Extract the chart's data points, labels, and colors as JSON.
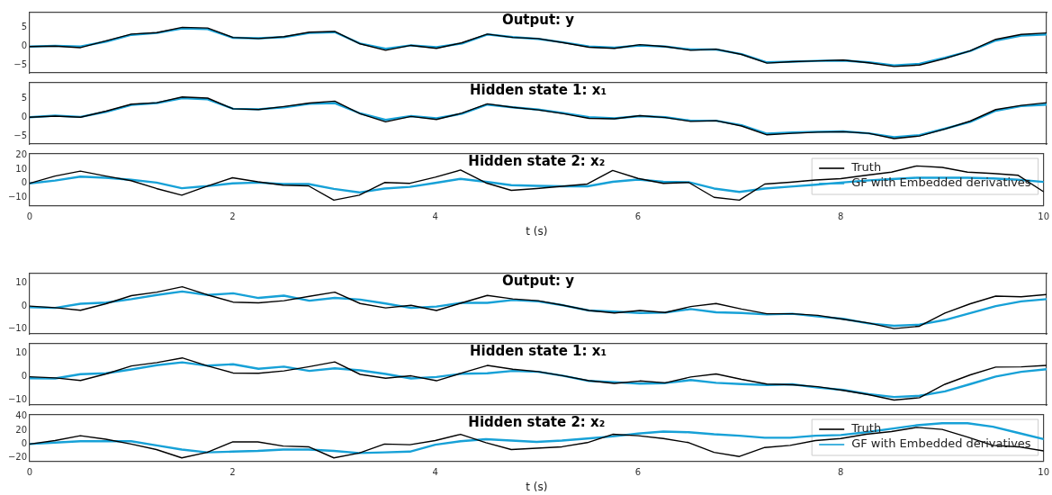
{
  "chart_data": [
    {
      "type": "line",
      "title": "Output: y",
      "x": [
        0,
        0.25,
        0.5,
        0.75,
        1,
        1.25,
        1.5,
        1.75,
        2,
        2.25,
        2.5,
        2.75,
        3,
        3.25,
        3.5,
        3.75,
        4,
        4.25,
        4.5,
        4.75,
        5,
        5.25,
        5.5,
        5.75,
        6,
        6.25,
        6.5,
        6.75,
        7,
        7.25,
        7.5,
        7.75,
        8,
        8.25,
        8.5,
        8.75,
        9,
        9.25,
        9.5,
        9.75,
        10
      ],
      "xlim": [
        0,
        10
      ],
      "xticks": [
        0,
        2,
        4,
        6,
        8,
        10
      ],
      "ylim": [
        -7,
        9
      ],
      "yticks": [
        -5,
        0,
        5
      ],
      "tick_labels": "y",
      "series": [
        {
          "color": "#000000",
          "values": [
            0,
            0.1,
            -0.3,
            1.5,
            3.3,
            3.7,
            5.1,
            4.9,
            2.4,
            2.1,
            2.6,
            3.8,
            4.0,
            0.7,
            -1,
            0.3,
            -0.5,
            1,
            3.3,
            2.4,
            2.1,
            1,
            -0.2,
            -0.5,
            0.5,
            0,
            -1,
            -0.7,
            -2.1,
            -4.4,
            -4,
            -3.8,
            -3.6,
            -4.3,
            -5.3,
            -4.9,
            -3.2,
            -1.1,
            1.9,
            3.2,
            3.6
          ]
        },
        {
          "color": "#17a1d7",
          "values": [
            0,
            0.2,
            0,
            1.3,
            3.1,
            3.6,
            4.8,
            4.6,
            2.3,
            2.2,
            2.5,
            3.6,
            3.8,
            0.8,
            -0.6,
            0.3,
            -0.2,
            0.8,
            3.2,
            2.5,
            2.0,
            1.1,
            0,
            -0.3,
            0.3,
            0,
            -0.8,
            -0.8,
            -2.0,
            -4.2,
            -4.0,
            -3.8,
            -3.7,
            -4.2,
            -5.0,
            -4.6,
            -3.0,
            -1.2,
            1.6,
            2.9,
            3.2
          ]
        }
      ]
    },
    {
      "type": "line",
      "title": "Hidden state 1: x₁",
      "x": [
        0,
        0.25,
        0.5,
        0.75,
        1,
        1.25,
        1.5,
        1.75,
        2,
        2.25,
        2.5,
        2.75,
        3,
        3.25,
        3.5,
        3.75,
        4,
        4.25,
        4.5,
        4.75,
        5,
        5.25,
        5.5,
        5.75,
        6,
        6.25,
        6.5,
        6.75,
        7,
        7.25,
        7.5,
        7.75,
        8,
        8.25,
        8.5,
        8.75,
        9,
        9.25,
        9.5,
        9.75,
        10
      ],
      "xlim": [
        0,
        10
      ],
      "xticks": [
        0,
        2,
        4,
        6,
        8,
        10
      ],
      "ylim": [
        -7,
        9
      ],
      "yticks": [
        -5,
        0,
        5
      ],
      "tick_labels": "y",
      "series": [
        {
          "color": "#000000",
          "values": [
            0,
            0.3,
            0,
            1.6,
            3.4,
            3.8,
            5.3,
            5.0,
            2.2,
            2.0,
            2.8,
            3.7,
            4.2,
            0.9,
            -1.2,
            0.2,
            -0.6,
            1.1,
            3.5,
            2.6,
            1.9,
            0.9,
            -0.3,
            -0.4,
            0.4,
            -0.1,
            -1.1,
            -0.9,
            -2.3,
            -4.6,
            -4.2,
            -3.9,
            -3.8,
            -4.2,
            -5.6,
            -4.9,
            -3.1,
            -1.0,
            2.0,
            3.1,
            3.8
          ]
        },
        {
          "color": "#17a1d7",
          "values": [
            0,
            0.4,
            0.1,
            1.4,
            3.2,
            3.7,
            5.0,
            4.7,
            2.2,
            2.1,
            2.6,
            3.5,
            3.7,
            1.0,
            -0.7,
            0.3,
            -0.3,
            0.9,
            3.3,
            2.6,
            2.0,
            1.1,
            0,
            -0.3,
            0.3,
            0,
            -0.9,
            -0.9,
            -2.1,
            -4.3,
            -4.0,
            -3.8,
            -3.7,
            -4.2,
            -5.2,
            -4.7,
            -3.0,
            -1.2,
            1.7,
            2.9,
            3.3
          ]
        }
      ]
    },
    {
      "type": "line",
      "title": "Hidden state 2: x₂",
      "xlabel": "t (s)",
      "legend": "top right",
      "x": [
        0,
        0.25,
        0.5,
        0.75,
        1,
        1.25,
        1.5,
        1.75,
        2,
        2.25,
        2.5,
        2.75,
        3,
        3.25,
        3.5,
        3.75,
        4,
        4.25,
        4.5,
        4.75,
        5,
        5.25,
        5.5,
        5.75,
        6,
        6.25,
        6.5,
        6.75,
        7,
        7.25,
        7.5,
        7.75,
        8,
        8.25,
        8.5,
        8.75,
        9,
        9.25,
        9.5,
        9.75,
        10
      ],
      "xlim": [
        0,
        10
      ],
      "xticks": [
        0,
        2,
        4,
        6,
        8,
        10
      ],
      "ylim": [
        -16,
        21
      ],
      "yticks": [
        -10,
        0,
        10,
        20
      ],
      "series": [
        {
          "name": "Truth",
          "color": "#000000",
          "values": [
            0,
            5.2,
            8.7,
            5.2,
            1.9,
            -3.7,
            -8.5,
            -2.1,
            4,
            1.1,
            -1.3,
            -1.8,
            -12,
            -8.5,
            0.6,
            0,
            4.4,
            9.5,
            0.3,
            -5,
            -3.7,
            -2.1,
            -0.5,
            9.2,
            3.5,
            0,
            0.6,
            -10,
            -12,
            -0.5,
            0.8,
            2.4,
            3.3,
            5.7,
            8,
            12.4,
            11.4,
            8,
            7,
            5.7,
            -6
          ]
        },
        {
          "name": "GF with Embedded derivatives",
          "color": "#17a1d7",
          "values": [
            0,
            2,
            4.8,
            4,
            2.5,
            0.5,
            -3.5,
            -2,
            0,
            0.5,
            -0.5,
            -0.5,
            -4,
            -6.5,
            -3.7,
            -2.5,
            0.3,
            3.2,
            1.1,
            -1.3,
            -1.8,
            -2.1,
            -2.1,
            1.1,
            2.7,
            1.1,
            0.8,
            -3.7,
            -6.1,
            -3.7,
            -2.4,
            -1,
            0.5,
            2,
            3,
            4,
            4,
            4,
            3.5,
            2.5,
            1
          ]
        }
      ]
    },
    {
      "type": "line",
      "title": "Output: y",
      "x": [
        0,
        0.25,
        0.5,
        0.75,
        1,
        1.25,
        1.5,
        1.75,
        2,
        2.25,
        2.5,
        2.75,
        3,
        3.25,
        3.5,
        3.75,
        4,
        4.25,
        4.5,
        4.75,
        5,
        5.25,
        5.5,
        5.75,
        6,
        6.25,
        6.5,
        6.75,
        7,
        7.25,
        7.5,
        7.75,
        8,
        8.25,
        8.5,
        8.75,
        9,
        9.25,
        9.5,
        9.75,
        10
      ],
      "xlim": [
        0,
        10
      ],
      "xticks": [
        0,
        2,
        4,
        6,
        8,
        10
      ],
      "ylim": [
        -12,
        14
      ],
      "yticks": [
        -10,
        0,
        10
      ],
      "tick_labels": "y",
      "series": [
        {
          "color": "#000000",
          "values": [
            0,
            -0.7,
            -1.8,
            1,
            4.5,
            6,
            8.3,
            4.8,
            1.7,
            1.4,
            2.3,
            4.2,
            6.0,
            1.1,
            -0.8,
            0.3,
            -1.9,
            1.4,
            4.6,
            3.1,
            2.3,
            0.3,
            -1.9,
            -3,
            -1.9,
            -2.8,
            -0.2,
            1.1,
            -1.3,
            -3.3,
            -3.3,
            -4,
            -5.7,
            -7.3,
            -9.7,
            -8.7,
            -3,
            1,
            4.3,
            4,
            5
          ]
        },
        {
          "color": "#17a1d7",
          "values": [
            -0.5,
            -0.8,
            1,
            1.5,
            3,
            4.8,
            6.3,
            4.8,
            5.5,
            3.5,
            4.5,
            2.3,
            3.5,
            2.8,
            1.1,
            -0.8,
            -0.2,
            1.4,
            1.4,
            2.6,
            2,
            0.3,
            -1.9,
            -2.4,
            -3,
            -2.8,
            -1.3,
            -2.7,
            -3,
            -3.6,
            -3.3,
            -4.5,
            -5.5,
            -7.5,
            -8.5,
            -8,
            -6,
            -3,
            0,
            2,
            3
          ]
        }
      ]
    },
    {
      "type": "line",
      "title": "Hidden state 1: x₁",
      "x": [
        0,
        0.25,
        0.5,
        0.75,
        1,
        1.25,
        1.5,
        1.75,
        2,
        2.25,
        2.5,
        2.75,
        3,
        3.25,
        3.5,
        3.75,
        4,
        4.25,
        4.5,
        4.75,
        5,
        5.25,
        5.5,
        5.75,
        6,
        6.25,
        6.5,
        6.75,
        7,
        7.25,
        7.5,
        7.75,
        8,
        8.25,
        8.5,
        8.75,
        9,
        9.25,
        9.5,
        9.75,
        10
      ],
      "xlim": [
        0,
        10
      ],
      "xticks": [
        0,
        2,
        4,
        6,
        8,
        10
      ],
      "ylim": [
        -12,
        14
      ],
      "yticks": [
        -10,
        0,
        10
      ],
      "tick_labels": "y",
      "series": [
        {
          "color": "#000000",
          "values": [
            0,
            -0.5,
            -1.6,
            1.2,
            4.6,
            6.0,
            8.0,
            4.6,
            1.6,
            1.5,
            2.5,
            4.3,
            6.3,
            1.0,
            -0.6,
            0.4,
            -1.7,
            1.6,
            4.8,
            3.2,
            2.2,
            0.4,
            -1.7,
            -2.8,
            -1.8,
            -2.6,
            -0.1,
            1.2,
            -1.1,
            -3.1,
            -3.4,
            -4.2,
            -5.8,
            -7.6,
            -9.9,
            -8.9,
            -3.2,
            0.8,
            4.1,
            4.2,
            4.8
          ]
        },
        {
          "color": "#17a1d7",
          "values": [
            -0.6,
            -0.7,
            1.1,
            1.5,
            3.1,
            4.9,
            6.1,
            4.7,
            5.3,
            3.4,
            4.3,
            2.5,
            3.6,
            2.7,
            1.2,
            -0.7,
            -0.1,
            1.3,
            1.5,
            2.5,
            2.1,
            0.4,
            -1.8,
            -2.3,
            -2.9,
            -2.7,
            -1.4,
            -2.6,
            -3.1,
            -3.5,
            -3.2,
            -4.6,
            -5.6,
            -7.4,
            -8.6,
            -8.1,
            -6.2,
            -3.1,
            0.1,
            2.1,
            3.2
          ]
        }
      ]
    },
    {
      "type": "line",
      "title": "Hidden state 2: x₂",
      "xlabel": "t (s)",
      "legend": "top right",
      "x": [
        0,
        0.25,
        0.5,
        0.75,
        1,
        1.25,
        1.5,
        1.75,
        2,
        2.25,
        2.5,
        2.75,
        3,
        3.25,
        3.5,
        3.75,
        4,
        4.25,
        4.5,
        4.75,
        5,
        5.25,
        5.5,
        5.75,
        6,
        6.25,
        6.5,
        6.75,
        7,
        7.25,
        7.5,
        7.75,
        8,
        8.25,
        8.5,
        8.75,
        9,
        9.25,
        9.5,
        9.75,
        10
      ],
      "xlim": [
        0,
        10
      ],
      "xticks": [
        0,
        2,
        4,
        6,
        8,
        10
      ],
      "ylim": [
        -25,
        42
      ],
      "yticks": [
        -20,
        0,
        20,
        40
      ],
      "series": [
        {
          "name": "Truth",
          "color": "#000000",
          "values": [
            0,
            5,
            12,
            7,
            0,
            -8,
            -20,
            -12,
            3,
            3,
            -3,
            -4,
            -20,
            -13,
            0,
            -1,
            5,
            14,
            2,
            -8,
            -6,
            -4,
            2,
            14,
            12,
            8,
            2,
            -12,
            -18,
            -5,
            -2,
            5,
            8,
            14,
            18,
            24,
            21,
            10,
            -2,
            -4,
            -10
          ]
        },
        {
          "name": "GF with Embedded derivatives",
          "color": "#17a1d7",
          "values": [
            0,
            2,
            4,
            4,
            4,
            -2,
            -8,
            -12,
            -11,
            -10,
            -8,
            -8,
            -10,
            -13,
            -12,
            -11,
            -1,
            4,
            7,
            5,
            3,
            5,
            8,
            11,
            15,
            18,
            17,
            14,
            12,
            9,
            9,
            12,
            13,
            17,
            22,
            27,
            30,
            30,
            25,
            16,
            7
          ]
        }
      ]
    }
  ]
}
